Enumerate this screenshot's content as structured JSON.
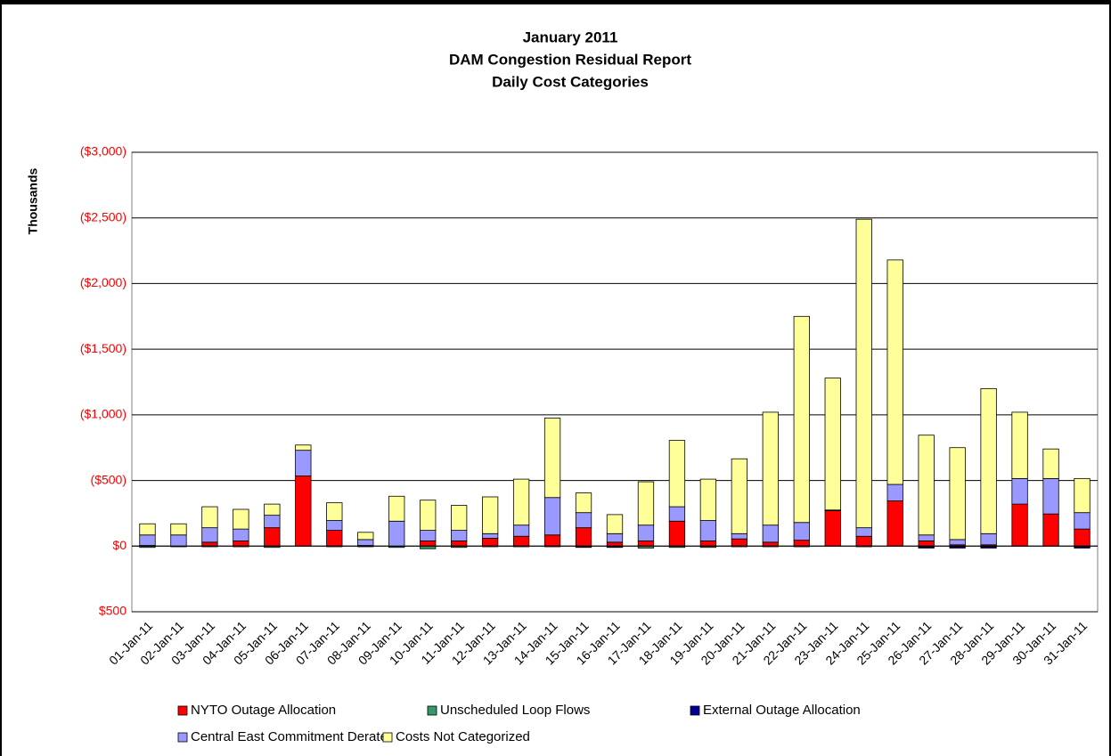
{
  "chart_data": {
    "type": "stacked_bar",
    "title": [
      "January 2011",
      "DAM Congestion Residual Report",
      "Daily Cost Categories"
    ],
    "y_label": "Thousands",
    "categories": [
      "01-Jan-11",
      "02-Jan-11",
      "03-Jan-11",
      "04-Jan-11",
      "05-Jan-11",
      "06-Jan-11",
      "07-Jan-11",
      "08-Jan-11",
      "09-Jan-11",
      "10-Jan-11",
      "11-Jan-11",
      "12-Jan-11",
      "13-Jan-11",
      "14-Jan-11",
      "15-Jan-11",
      "16-Jan-11",
      "17-Jan-11",
      "18-Jan-11",
      "19-Jan-11",
      "20-Jan-11",
      "21-Jan-11",
      "22-Jan-11",
      "23-Jan-11",
      "24-Jan-11",
      "25-Jan-11",
      "26-Jan-11",
      "27-Jan-11",
      "28-Jan-11",
      "29-Jan-11",
      "30-Jan-11",
      "31-Jan-11"
    ],
    "series": [
      {
        "name": "NYTO  Outage Allocation",
        "color": "#ff0000",
        "values": [
          -5,
          0,
          -30,
          -40,
          -140,
          -535,
          -120,
          -5,
          0,
          -40,
          -40,
          -60,
          -75,
          -85,
          -140,
          -30,
          -40,
          -190,
          -40,
          -55,
          -30,
          -45,
          -270,
          -75,
          -345,
          -40,
          -10,
          -10,
          -320,
          -245,
          -130
        ]
      },
      {
        "name": "Unscheduled Loop Flows",
        "color": "#339966",
        "values": [
          10,
          5,
          5,
          5,
          10,
          0,
          5,
          5,
          10,
          20,
          10,
          5,
          5,
          5,
          5,
          5,
          15,
          10,
          10,
          5,
          5,
          5,
          0,
          5,
          0,
          5,
          5,
          5,
          0,
          0,
          5
        ]
      },
      {
        "name": "External Outage Allocation",
        "color": "#000099",
        "values": [
          0,
          0,
          0,
          0,
          0,
          0,
          0,
          0,
          0,
          0,
          0,
          0,
          0,
          0,
          5,
          5,
          0,
          0,
          0,
          0,
          0,
          0,
          0,
          0,
          0,
          10,
          10,
          10,
          0,
          0,
          10
        ]
      },
      {
        "name": "Central East Commitment Derate",
        "color": "#9999ff",
        "values": [
          -80,
          -85,
          -110,
          -90,
          -95,
          -195,
          -75,
          -45,
          -190,
          -80,
          -80,
          -35,
          -85,
          -285,
          -115,
          -65,
          -120,
          -110,
          -155,
          -40,
          -130,
          -135,
          -5,
          -65,
          -125,
          -45,
          -40,
          -85,
          -195,
          -270,
          -125
        ]
      },
      {
        "name": "Costs Not Categorized",
        "color": "#ffff99",
        "values": [
          -85,
          -85,
          -160,
          -150,
          -85,
          -40,
          -135,
          -55,
          -190,
          -230,
          -190,
          -280,
          -350,
          -605,
          -150,
          -145,
          -330,
          -505,
          -315,
          -570,
          -860,
          -1570,
          -1005,
          -2350,
          -1710,
          -760,
          -700,
          -1105,
          -505,
          -225,
          -260
        ]
      }
    ],
    "ylim": [
      500,
      -3000
    ],
    "yticks": [
      {
        "value": -3000,
        "label": "($3,000)"
      },
      {
        "value": -2500,
        "label": "($2,500)"
      },
      {
        "value": -2000,
        "label": "($2,000)"
      },
      {
        "value": -1500,
        "label": "($1,500)"
      },
      {
        "value": -1000,
        "label": "($1,000)"
      },
      {
        "value": -500,
        "label": "($500)"
      },
      {
        "value": 0,
        "label": "$0"
      },
      {
        "value": 500,
        "label": "$500"
      }
    ],
    "grid": true
  }
}
